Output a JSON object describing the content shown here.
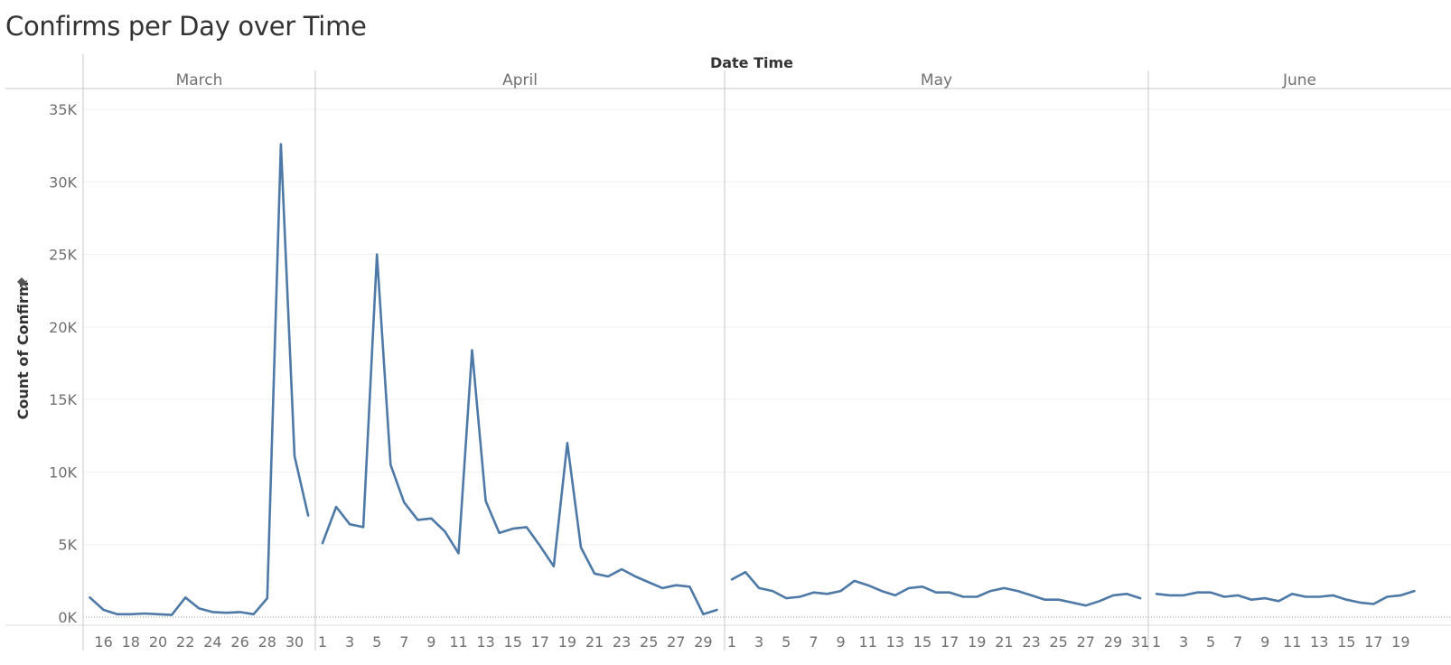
{
  "title": "Confirms per Day over Time",
  "pin_icon": "pin-icon",
  "colors": {
    "line": "#4e79a7",
    "grid": "#f0f0f0",
    "divider": "#c8c8c8",
    "text": "#707070"
  },
  "chart_data": {
    "type": "line",
    "title": "Confirms per Day over Time",
    "xlabel": "Date Time",
    "ylabel": "Count of Confirm",
    "ylim": [
      0,
      35000
    ],
    "yticks": [
      0,
      5000,
      10000,
      15000,
      20000,
      25000,
      30000,
      35000
    ],
    "ytick_labels": [
      "0K",
      "5K",
      "10K",
      "15K",
      "20K",
      "25K",
      "30K",
      "35K"
    ],
    "grid": true,
    "months": [
      {
        "name": "March",
        "start_day": 15,
        "end_day": 31,
        "tick_days": [
          16,
          18,
          20,
          22,
          24,
          26,
          28,
          30
        ],
        "values": [
          1350,
          500,
          200,
          200,
          250,
          200,
          150,
          1350,
          600,
          350,
          300,
          350,
          200,
          1300,
          32600,
          11100,
          7000
        ]
      },
      {
        "name": "April",
        "start_day": 1,
        "end_day": 30,
        "tick_days": [
          1,
          3,
          5,
          7,
          9,
          11,
          13,
          15,
          17,
          19,
          21,
          23,
          25,
          27,
          29
        ],
        "values": [
          5100,
          7600,
          6400,
          6200,
          25000,
          10500,
          7900,
          6700,
          6800,
          5900,
          4400,
          18400,
          8000,
          5800,
          6100,
          6200,
          4900,
          3500,
          12000,
          4800,
          3000,
          2800,
          3300,
          2800,
          2400,
          2000,
          2200,
          2100,
          200,
          500
        ]
      },
      {
        "name": "May",
        "start_day": 1,
        "end_day": 31,
        "tick_days": [
          1,
          3,
          5,
          7,
          9,
          11,
          13,
          15,
          17,
          19,
          21,
          23,
          25,
          27,
          29,
          31
        ],
        "values": [
          2600,
          3100,
          2000,
          1800,
          1300,
          1400,
          1700,
          1600,
          1800,
          2500,
          2200,
          1800,
          1500,
          2000,
          2100,
          1700,
          1700,
          1400,
          1400,
          1800,
          2000,
          1800,
          1500,
          1200,
          1200,
          1000,
          800,
          1100,
          1500,
          1600,
          1300
        ]
      },
      {
        "name": "June",
        "start_day": 1,
        "end_day": 20,
        "tick_days": [
          1,
          3,
          5,
          7,
          9,
          11,
          13,
          15,
          17,
          19
        ],
        "values": [
          1600,
          1500,
          1500,
          1700,
          1700,
          1400,
          1500,
          1200,
          1300,
          1100,
          1600,
          1400,
          1400,
          1500,
          1200,
          1000,
          900,
          1400,
          1500,
          1800
        ]
      }
    ]
  }
}
